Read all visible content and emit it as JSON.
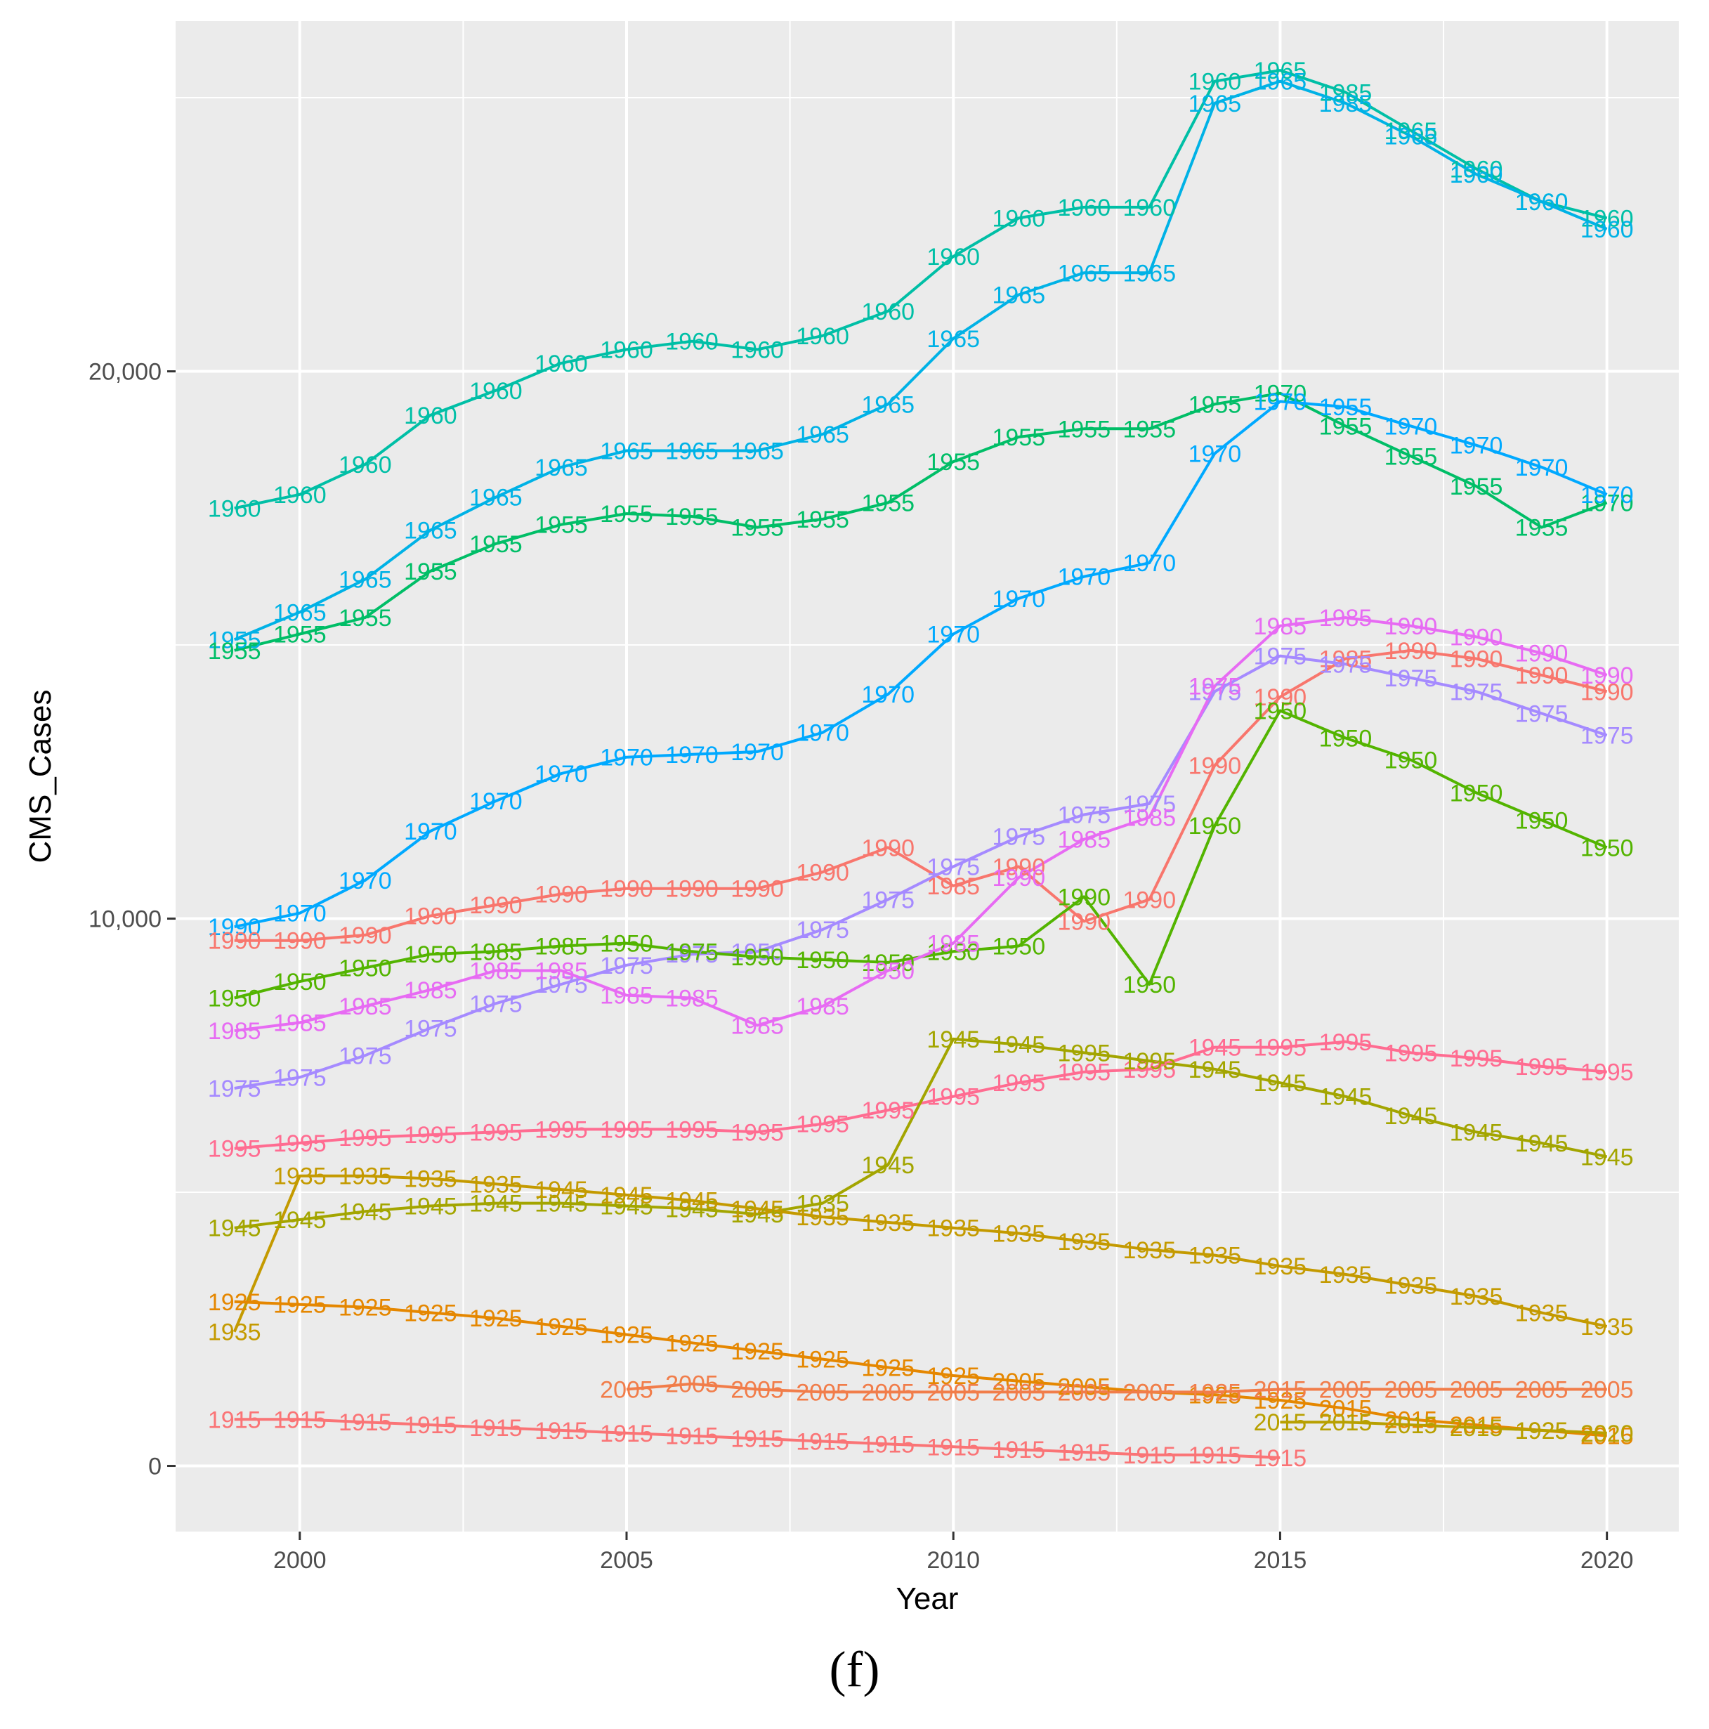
{
  "chart_data": {
    "type": "line",
    "title": "",
    "xlabel": "Year",
    "ylabel": "CMS_Cases",
    "caption": "(f)",
    "xlim": [
      1998.1,
      2021.1
    ],
    "ylim": [
      -1200,
      26400
    ],
    "xticks": [
      2000,
      2005,
      2010,
      2015,
      2020
    ],
    "xtick_labels": [
      "2000",
      "2005",
      "2010",
      "2015",
      "2020"
    ],
    "yticks": [
      0,
      10000,
      20000
    ],
    "ytick_labels": [
      "0",
      "10,000",
      "20,000"
    ],
    "grid": true,
    "legend": "none",
    "series": [
      {
        "name": "1960",
        "color": "#00BFA6",
        "x": [
          1999,
          2000,
          2001,
          2002,
          2003,
          2004,
          2005,
          2006,
          2007,
          2008,
          2009,
          2010,
          2011,
          2012,
          2013,
          2014,
          2015,
          2016,
          2017,
          2018,
          2019,
          2020
        ],
        "y": [
          17500,
          17750,
          18300,
          19200,
          19650,
          20150,
          20400,
          20550,
          20400,
          20650,
          21100,
          22100,
          22800,
          23000,
          23000,
          25300,
          25500,
          25100,
          24400,
          23700,
          23100,
          22800
        ],
        "labels": [
          "1960",
          "1960",
          "1960",
          "1960",
          "1960",
          "1960",
          "1960",
          "1960",
          "1960",
          "1960",
          "1960",
          "1960",
          "1960",
          "1960",
          "1960",
          "1960",
          "1965",
          "1985",
          "1965",
          "1960",
          "1960",
          "1960"
        ]
      },
      {
        "name": "1965",
        "color": "#00B2E6",
        "x": [
          1999,
          2000,
          2001,
          2002,
          2003,
          2004,
          2005,
          2006,
          2007,
          2008,
          2009,
          2010,
          2011,
          2012,
          2013,
          2014,
          2015,
          2016,
          2017,
          2018,
          2019,
          2020
        ],
        "y": [
          15100,
          15600,
          16200,
          17100,
          17700,
          18250,
          18550,
          18550,
          18550,
          18850,
          19400,
          20600,
          21400,
          21800,
          21800,
          24900,
          25300,
          24900,
          24300,
          23600,
          23100,
          22600
        ],
        "labels": [
          "1955",
          "1965",
          "1965",
          "1965",
          "1965",
          "1965",
          "1965",
          "1965",
          "1965",
          "1965",
          "1965",
          "1965",
          "1965",
          "1965",
          "1965",
          "1965",
          "1965",
          "1985",
          "1965",
          "1960",
          "1960",
          "1960"
        ]
      },
      {
        "name": "1955",
        "color": "#00BE67",
        "x": [
          1999,
          2000,
          2001,
          2002,
          2003,
          2004,
          2005,
          2006,
          2007,
          2008,
          2009,
          2010,
          2011,
          2012,
          2013,
          2014,
          2015,
          2016,
          2017,
          2018,
          2019,
          2020
        ],
        "y": [
          14900,
          15200,
          15500,
          16350,
          16850,
          17200,
          17400,
          17350,
          17150,
          17300,
          17600,
          18350,
          18800,
          18950,
          18950,
          19400,
          19600,
          19000,
          18450,
          17900,
          17150,
          17600
        ],
        "labels": [
          "1955",
          "1955",
          "1955",
          "1955",
          "1955",
          "1955",
          "1955",
          "1955",
          "1955",
          "1955",
          "1955",
          "1955",
          "1955",
          "1955",
          "1955",
          "1955",
          "1970",
          "1955",
          "1955",
          "1955",
          "1955",
          "1970"
        ]
      },
      {
        "name": "1970",
        "color": "#00A9FF",
        "x": [
          1999,
          2000,
          2001,
          2002,
          2003,
          2004,
          2005,
          2006,
          2007,
          2008,
          2009,
          2010,
          2011,
          2012,
          2013,
          2014,
          2015,
          2016,
          2017,
          2018,
          2019,
          2020
        ],
        "y": [
          9850,
          10100,
          10700,
          11600,
          12150,
          12650,
          12950,
          13000,
          13050,
          13400,
          14100,
          15200,
          15850,
          16250,
          16500,
          18500,
          19450,
          19350,
          19000,
          18650,
          18250,
          17750
        ],
        "labels": [
          "1990",
          "1970",
          "1970",
          "1970",
          "1970",
          "1970",
          "1970",
          "1970",
          "1970",
          "1970",
          "1970",
          "1970",
          "1970",
          "1970",
          "1970",
          "1970",
          "1970",
          "1955",
          "1970",
          "1970",
          "1970",
          "1970"
        ]
      },
      {
        "name": "1990",
        "color": "#F8766D",
        "x": [
          1999,
          2000,
          2001,
          2002,
          2003,
          2004,
          2005,
          2006,
          2007,
          2008,
          2009,
          2010,
          2011,
          2012,
          2013,
          2014,
          2015,
          2016,
          2017,
          2018,
          2019,
          2020
        ],
        "y": [
          9600,
          9600,
          9700,
          10050,
          10250,
          10450,
          10550,
          10550,
          10550,
          10850,
          11300,
          10600,
          10950,
          9950,
          10350,
          12800,
          14050,
          14750,
          14900,
          14750,
          14450,
          14150
        ],
        "labels": [
          "1990",
          "1990",
          "1990",
          "1990",
          "1990",
          "1990",
          "1990",
          "1990",
          "1990",
          "1990",
          "1990",
          "1985",
          "1990",
          "1990",
          "1990",
          "1990",
          "1990",
          "1985",
          "1990",
          "1990",
          "1990",
          "1990"
        ]
      },
      {
        "name": "1975",
        "color": "#A58AFF",
        "x": [
          1999,
          2000,
          2001,
          2002,
          2003,
          2004,
          2005,
          2006,
          2007,
          2008,
          2009,
          2010,
          2011,
          2012,
          2013,
          2014,
          2015,
          2016,
          2017,
          2018,
          2019,
          2020
        ],
        "y": [
          6900,
          7100,
          7500,
          8000,
          8450,
          8800,
          9150,
          9350,
          9400,
          9800,
          10350,
          10950,
          11500,
          11900,
          12100,
          14150,
          14800,
          14650,
          14400,
          14150,
          13750,
          13350
        ],
        "labels": [
          "1975",
          "1975",
          "1975",
          "1975",
          "1975",
          "1975",
          "1975",
          "1975",
          "1950",
          "1975",
          "1975",
          "1975",
          "1975",
          "1975",
          "1975",
          "1975",
          "1975",
          "1975",
          "1975",
          "1975",
          "1975",
          "1975"
        ]
      },
      {
        "name": "1950",
        "color": "#53B400",
        "x": [
          1999,
          2000,
          2001,
          2002,
          2003,
          2004,
          2005,
          2006,
          2007,
          2008,
          2009,
          2010,
          2011,
          2012,
          2013,
          2014,
          2015,
          2016,
          2017,
          2018,
          2019,
          2020
        ],
        "y": [
          8550,
          8850,
          9100,
          9350,
          9400,
          9500,
          9550,
          9400,
          9300,
          9250,
          9200,
          9400,
          9500,
          10400,
          8800,
          11700,
          13800,
          13300,
          12900,
          12300,
          11800,
          11300
        ],
        "labels": [
          "1950",
          "1950",
          "1950",
          "1950",
          "1985",
          "1985",
          "1950",
          "1975",
          "1950",
          "1950",
          "1950",
          "1950",
          "1950",
          "1990",
          "1950",
          "1950",
          "1950",
          "1950",
          "1950",
          "1950",
          "1950",
          "1950"
        ]
      },
      {
        "name": "1985",
        "color": "#E76BF3",
        "x": [
          1999,
          2000,
          2001,
          2002,
          2003,
          2004,
          2005,
          2006,
          2007,
          2008,
          2009,
          2010,
          2011,
          2012,
          2013,
          2014,
          2015,
          2016,
          2017,
          2018,
          2019,
          2020
        ],
        "y": [
          7950,
          8100,
          8400,
          8700,
          9050,
          9050,
          8600,
          8550,
          8050,
          8400,
          9050,
          9550,
          10750,
          11450,
          11850,
          14250,
          15350,
          15500,
          15350,
          15150,
          14850,
          14450
        ],
        "labels": [
          "1985",
          "1985",
          "1985",
          "1985",
          "1985",
          "1985",
          "1985",
          "1985",
          "1985",
          "1985",
          "1950",
          "1985",
          "1990",
          "1985",
          "1985",
          "1975",
          "1985",
          "1985",
          "1990",
          "1990",
          "1990",
          "1990"
        ]
      },
      {
        "name": "1995",
        "color": "#FF6C91",
        "x": [
          1999,
          2000,
          2001,
          2002,
          2003,
          2004,
          2005,
          2006,
          2007,
          2008,
          2009,
          2010,
          2011,
          2012,
          2013,
          2014,
          2015,
          2016,
          2017,
          2018,
          2019,
          2020
        ],
        "y": [
          5800,
          5900,
          6000,
          6050,
          6100,
          6150,
          6150,
          6150,
          6100,
          6250,
          6500,
          6750,
          7000,
          7200,
          7250,
          7650,
          7650,
          7750,
          7550,
          7450,
          7300,
          7200
        ],
        "labels": [
          "1995",
          "1995",
          "1995",
          "1995",
          "1995",
          "1995",
          "1995",
          "1995",
          "1995",
          "1995",
          "1995",
          "1995",
          "1995",
          "1995",
          "1995",
          "1945",
          "1995",
          "1995",
          "1995",
          "1995",
          "1995",
          "1995"
        ]
      },
      {
        "name": "1945",
        "color": "#A3A500",
        "x": [
          1999,
          2000,
          2001,
          2002,
          2003,
          2004,
          2005,
          2006,
          2007,
          2008,
          2009,
          2010,
          2011,
          2012,
          2013,
          2014,
          2015,
          2016,
          2017,
          2018,
          2019,
          2020
        ],
        "y": [
          4350,
          4500,
          4650,
          4750,
          4800,
          4800,
          4750,
          4700,
          4600,
          4800,
          5500,
          7800,
          7700,
          7550,
          7400,
          7250,
          7000,
          6750,
          6400,
          6100,
          5900,
          5650
        ],
        "labels": [
          "1945",
          "1945",
          "1945",
          "1945",
          "1945",
          "1945",
          "1945",
          "1945",
          "1945",
          "1935",
          "1945",
          "1945",
          "1945",
          "1995",
          "1995",
          "1945",
          "1945",
          "1945",
          "1945",
          "1945",
          "1945",
          "1945"
        ]
      },
      {
        "name": "1935",
        "color": "#C49A00",
        "x": [
          1999,
          2000,
          2001,
          2002,
          2003,
          2004,
          2005,
          2006,
          2007,
          2008,
          2009,
          2010,
          2011,
          2012,
          2013,
          2014,
          2015,
          2016,
          2017,
          2018,
          2019,
          2020
        ],
        "y": [
          2450,
          5300,
          5300,
          5250,
          5150,
          5050,
          4950,
          4850,
          4700,
          4550,
          4450,
          4350,
          4250,
          4100,
          3950,
          3850,
          3650,
          3500,
          3300,
          3100,
          2800,
          2550
        ],
        "labels": [
          "1935",
          "1935",
          "1935",
          "1935",
          "1935",
          "1945",
          "1945",
          "1945",
          "1945",
          "1935",
          "1935",
          "1935",
          "1935",
          "1935",
          "1935",
          "1935",
          "1935",
          "1935",
          "1935",
          "1935",
          "1935",
          "1935"
        ]
      },
      {
        "name": "1925",
        "color": "#E58700",
        "x": [
          1999,
          2000,
          2001,
          2002,
          2003,
          2004,
          2005,
          2006,
          2007,
          2008,
          2009,
          2010,
          2011,
          2012,
          2013,
          2014,
          2015,
          2016,
          2017,
          2018,
          2019,
          2020
        ],
        "y": [
          3000,
          2950,
          2900,
          2800,
          2700,
          2550,
          2400,
          2250,
          2100,
          1950,
          1800,
          1650,
          1550,
          1450,
          1350,
          1300,
          1200,
          1050,
          850,
          750,
          650,
          550
        ],
        "labels": [
          "1925",
          "1925",
          "1925",
          "1925",
          "1925",
          "1925",
          "1925",
          "1925",
          "1925",
          "1925",
          "1925",
          "1925",
          "2005",
          "2005",
          "2005",
          "1925",
          "1925",
          "2015",
          "2015",
          "2015",
          "1925",
          "2015"
        ]
      },
      {
        "name": "2005",
        "color": "#F17D4A",
        "x": [
          2005,
          2006,
          2007,
          2008,
          2009,
          2010,
          2011,
          2012,
          2013,
          2014,
          2015,
          2016,
          2017,
          2018,
          2019,
          2020
        ],
        "y": [
          1400,
          1500,
          1400,
          1350,
          1350,
          1350,
          1350,
          1350,
          1350,
          1350,
          1400,
          1400,
          1400,
          1400,
          1400,
          1400
        ],
        "labels": [
          "2005",
          "2005",
          "2005",
          "2005",
          "2005",
          "2005",
          "2005",
          "2005",
          "2005",
          "1925",
          "2015",
          "2005",
          "2005",
          "2005",
          "2005",
          "2005"
        ]
      },
      {
        "name": "1915",
        "color": "#FA7476",
        "x": [
          1999,
          2000,
          2001,
          2002,
          2003,
          2004,
          2005,
          2006,
          2007,
          2008,
          2009,
          2010,
          2011,
          2012,
          2013,
          2014,
          2015
        ],
        "y": [
          850,
          850,
          800,
          750,
          700,
          650,
          600,
          550,
          500,
          450,
          400,
          350,
          300,
          250,
          200,
          200,
          150
        ],
        "labels": [
          "1915",
          "1915",
          "1915",
          "1915",
          "1915",
          "1915",
          "1915",
          "1915",
          "1915",
          "1915",
          "1915",
          "1915",
          "1915",
          "1915",
          "1915",
          "1915",
          "1915"
        ]
      },
      {
        "name": "2015",
        "color": "#B8A000",
        "x": [
          2015,
          2016,
          2017,
          2018,
          2019,
          2020
        ],
        "y": [
          800,
          800,
          750,
          700,
          650,
          600
        ],
        "labels": [
          "2015",
          "2015",
          "2015",
          "2015",
          "1925",
          "2020"
        ]
      }
    ]
  }
}
